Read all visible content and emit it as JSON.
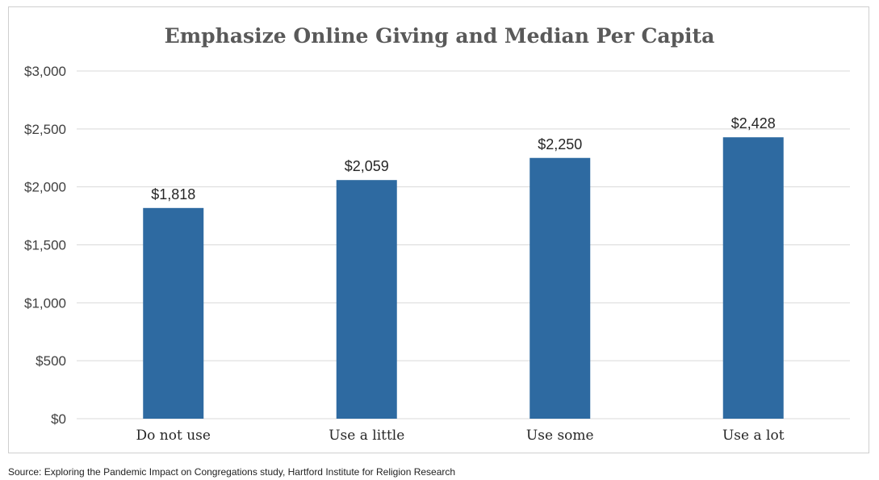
{
  "chart_data": {
    "type": "bar",
    "title": "Emphasize Online Giving and Median Per Capita",
    "categories": [
      "Do not use",
      "Use a little",
      "Use some",
      "Use a lot"
    ],
    "values": [
      1818,
      2059,
      2250,
      2428
    ],
    "data_labels": [
      "$1,818",
      "$2,059",
      "$2,250",
      "$2,428"
    ],
    "y_ticks": [
      0,
      500,
      1000,
      1500,
      2000,
      2500,
      3000
    ],
    "y_tick_labels": [
      "$0",
      "$500",
      "$1,000",
      "$1,500",
      "$2,000",
      "$2,500",
      "$3,000"
    ],
    "ylim": [
      0,
      3000
    ],
    "xlabel": "",
    "ylabel": "",
    "grid": true,
    "bar_color": "#2e6aa1",
    "grid_color": "#d9d9d9"
  },
  "source": "Source: Exploring the Pandemic Impact on Congregations study, Hartford Institute for Religion Research"
}
